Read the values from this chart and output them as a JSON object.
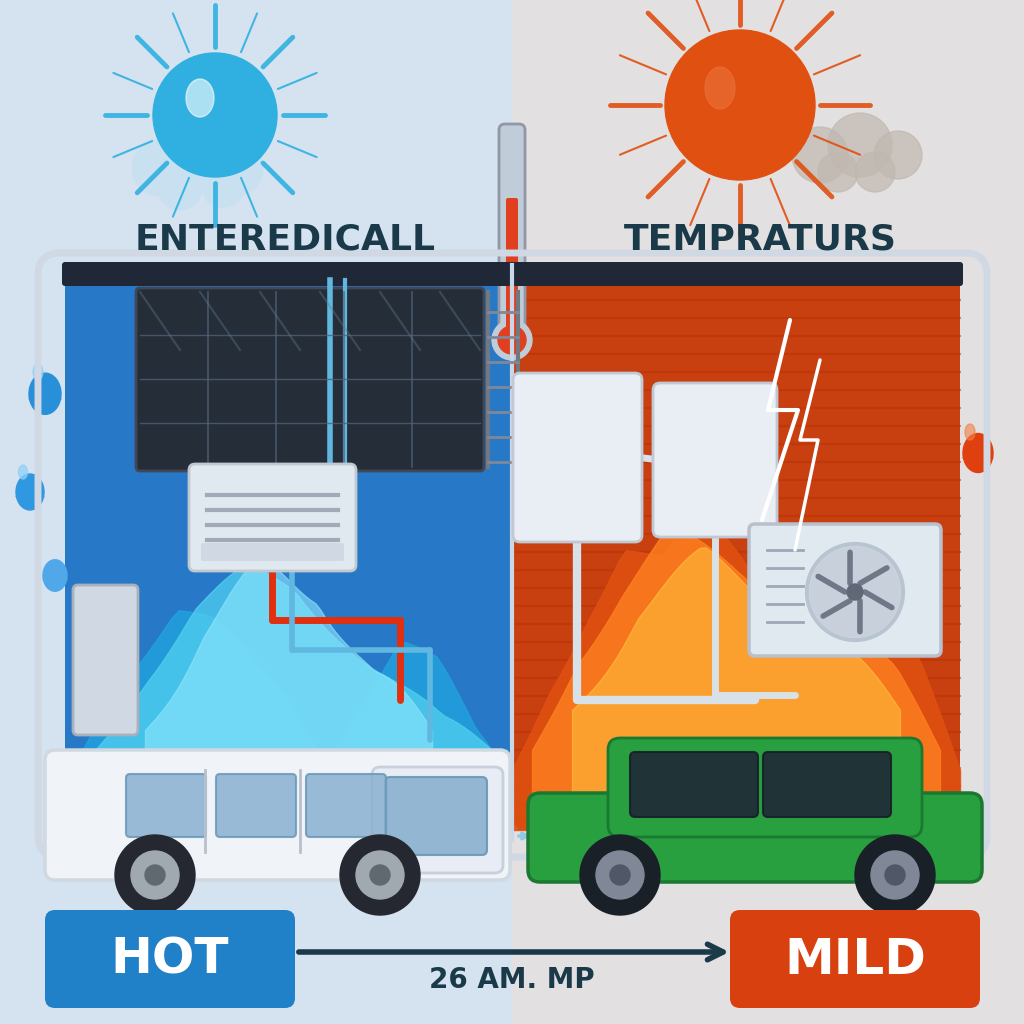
{
  "bg_color": "#dce8f4",
  "title_left": "ENTEREDICALL",
  "title_right": "TEMPRATURS",
  "title_color": "#1a3a4a",
  "title_fontsize": 26,
  "title_fontweight": "bold",
  "label_hot": "HOT",
  "label_mild": "MILD",
  "label_hot_color": "#2080c8",
  "label_mild_color": "#d94010",
  "label_fontsize": 36,
  "label_fontweight": "bold",
  "arrow_text": "26 AM. MP",
  "arrow_text_color": "#1a3a4a",
  "arrow_color": "#1a3a4a",
  "arrow_fontsize": 20,
  "left_panel_bg": "#2060a8",
  "right_panel_bg": "#b83008",
  "sun_blue": "#30b0e0",
  "sun_orange": "#e05010",
  "rv_border": "#d0d8e4",
  "rv_border_lw": 5
}
